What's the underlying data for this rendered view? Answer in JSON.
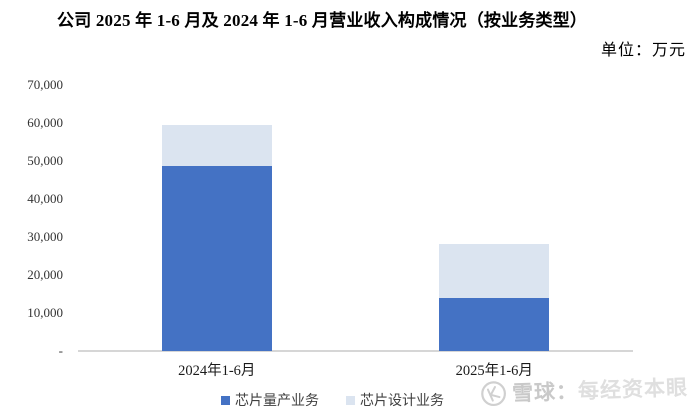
{
  "page": {
    "title": "公司 2025 年 1-6 月及 2024 年 1-6 月营业收入构成情况（按业务类型）",
    "unit_label": "单位：万元"
  },
  "chart_data": {
    "type": "bar",
    "stacked": true,
    "title": "公司 2025 年 1-6 月及 2024 年 1-6 月营业收入构成情况（按业务类型）",
    "unit": "万元",
    "categories": [
      "2024年1-6月",
      "2025年1-6月"
    ],
    "series": [
      {
        "name": "芯片量产业务",
        "color": "#4472c4",
        "values": [
          48700,
          14000
        ]
      },
      {
        "name": "芯片设计业务",
        "color": "#dbe4f0",
        "values": [
          10700,
          14100
        ]
      }
    ],
    "ylim": [
      0,
      70000
    ],
    "yticks": [
      {
        "label": "70,000",
        "value": 70000
      },
      {
        "label": "60,000",
        "value": 60000
      },
      {
        "label": "50,000",
        "value": 50000
      },
      {
        "label": "40,000",
        "value": 40000
      },
      {
        "label": "30,000",
        "value": 30000
      },
      {
        "label": "20,000",
        "value": 20000
      },
      {
        "label": "10,000",
        "value": 10000
      },
      {
        "label": "-",
        "value": 0
      }
    ],
    "grid": false,
    "legend_position": "bottom",
    "xlabel": "",
    "ylabel": ""
  },
  "watermark": {
    "logo": "xueqiu-logo",
    "text_primary": "雪球：",
    "text_secondary": "每经资本眼"
  }
}
